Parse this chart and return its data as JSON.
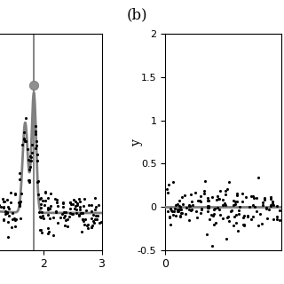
{
  "background_color": "#ffffff",
  "fig_width": 3.2,
  "fig_height": 3.2,
  "fig_dpi": 100,
  "panel_a": {
    "xlim": [
      1.0,
      3.0
    ],
    "ylim": [
      -0.3,
      1.5
    ],
    "xticks": [
      2,
      3
    ],
    "curve_color": "#808080",
    "curve_lw": 2.0,
    "peak1_x": 1.68,
    "peak1_y": 0.82,
    "peak2_x": 1.83,
    "peak2_y": 1.05,
    "dot_color": "#909090",
    "dot_size": 55,
    "scatter_color": "black",
    "scatter_size": 5
  },
  "panel_b": {
    "xlim": [
      0.0,
      1.0
    ],
    "ylim": [
      -0.5,
      2.0
    ],
    "xticks": [
      0
    ],
    "yticks": [
      -0.5,
      0,
      0.5,
      1.0,
      1.5,
      2.0
    ],
    "ylabel": "y",
    "flat_line_color": "#808080",
    "flat_line_y": 0.0,
    "flat_line_lw": 2.0,
    "scatter_color": "black",
    "scatter_size": 5
  },
  "label_b_text": "(b)",
  "label_b_fontsize": 12
}
